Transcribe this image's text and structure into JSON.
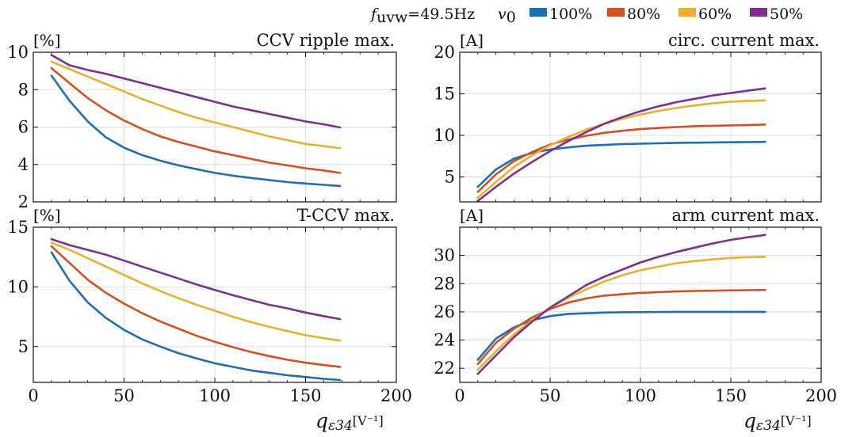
{
  "legend": {
    "freq_label": "f",
    "freq_sub": "uvw",
    "freq_value": "=49.5Hz",
    "v0_label": "v",
    "v0_sub": "0"
  },
  "xaxis": {
    "label": "q",
    "label_sub": "ε34",
    "unit": "[V⁻¹]"
  },
  "chart_data": [
    {
      "type": "line",
      "title": "CCV ripple max.",
      "unit": "[%]",
      "xlim": [
        0,
        200
      ],
      "ylim": [
        2,
        10
      ],
      "yticks": [
        2,
        4,
        6,
        8,
        10
      ],
      "xticks": [
        0,
        50,
        100,
        150,
        200
      ],
      "show_xtick_labels": false,
      "grid": true,
      "x": [
        10,
        20,
        30,
        40,
        50,
        60,
        70,
        80,
        90,
        100,
        110,
        120,
        130,
        140,
        150,
        160,
        169
      ],
      "series": [
        {
          "name": "100%",
          "color": "#1f6eb4",
          "values": [
            8.75,
            7.4,
            6.3,
            5.45,
            4.9,
            4.5,
            4.2,
            3.95,
            3.75,
            3.55,
            3.4,
            3.28,
            3.17,
            3.06,
            2.98,
            2.91,
            2.85
          ]
        },
        {
          "name": "80%",
          "color": "#d05220",
          "values": [
            9.15,
            8.35,
            7.55,
            6.9,
            6.35,
            5.9,
            5.5,
            5.2,
            4.95,
            4.7,
            4.5,
            4.3,
            4.1,
            3.95,
            3.8,
            3.68,
            3.55
          ]
        },
        {
          "name": "60%",
          "color": "#e8b030",
          "values": [
            9.5,
            9.1,
            8.7,
            8.3,
            7.9,
            7.5,
            7.15,
            6.8,
            6.5,
            6.25,
            6.0,
            5.75,
            5.5,
            5.3,
            5.1,
            4.98,
            4.87
          ]
        },
        {
          "name": "50%",
          "color": "#7e2f8e",
          "values": [
            9.85,
            9.3,
            9.05,
            8.85,
            8.6,
            8.35,
            8.1,
            7.85,
            7.6,
            7.35,
            7.1,
            6.9,
            6.7,
            6.5,
            6.3,
            6.15,
            5.98
          ]
        }
      ]
    },
    {
      "type": "line",
      "title": "circ. current max.",
      "unit": "[A]",
      "xlim": [
        0,
        200
      ],
      "ylim": [
        2,
        20
      ],
      "yticks": [
        5,
        10,
        15,
        20
      ],
      "xticks": [
        0,
        50,
        100,
        150,
        200
      ],
      "show_xtick_labels": false,
      "grid": true,
      "x": [
        10,
        20,
        30,
        40,
        50,
        60,
        70,
        80,
        90,
        100,
        110,
        120,
        130,
        140,
        150,
        160,
        169
      ],
      "series": [
        {
          "name": "100%",
          "color": "#1f6eb4",
          "values": [
            3.8,
            5.9,
            7.2,
            7.9,
            8.3,
            8.55,
            8.75,
            8.85,
            8.95,
            9.0,
            9.05,
            9.1,
            9.12,
            9.15,
            9.17,
            9.2,
            9.22
          ]
        },
        {
          "name": "80%",
          "color": "#d05220",
          "values": [
            3.2,
            5.3,
            6.9,
            8.0,
            8.9,
            9.5,
            9.95,
            10.3,
            10.55,
            10.75,
            10.9,
            11.0,
            11.1,
            11.15,
            11.2,
            11.25,
            11.3
          ]
        },
        {
          "name": "60%",
          "color": "#e8b030",
          "values": [
            2.5,
            4.4,
            6.2,
            7.6,
            8.8,
            9.8,
            10.7,
            11.4,
            12.0,
            12.5,
            12.95,
            13.3,
            13.6,
            13.85,
            14.05,
            14.15,
            14.2
          ]
        },
        {
          "name": "50%",
          "color": "#7e2f8e",
          "values": [
            2.1,
            3.8,
            5.4,
            6.8,
            8.1,
            9.3,
            10.4,
            11.4,
            12.2,
            12.9,
            13.5,
            14.0,
            14.4,
            14.8,
            15.1,
            15.4,
            15.65
          ]
        }
      ]
    },
    {
      "type": "line",
      "title": "T-CCV max.",
      "unit": "[%]",
      "xlim": [
        0,
        200
      ],
      "ylim": [
        2,
        15
      ],
      "yticks": [
        5,
        10,
        15
      ],
      "xticks": [
        0,
        50,
        100,
        150,
        200
      ],
      "show_xtick_labels": true,
      "grid": true,
      "x": [
        10,
        20,
        30,
        40,
        50,
        60,
        70,
        80,
        90,
        100,
        110,
        120,
        130,
        140,
        150,
        160,
        169
      ],
      "series": [
        {
          "name": "100%",
          "color": "#1f6eb4",
          "values": [
            12.9,
            10.5,
            8.7,
            7.4,
            6.4,
            5.6,
            5.0,
            4.45,
            4.0,
            3.6,
            3.3,
            3.0,
            2.8,
            2.6,
            2.45,
            2.3,
            2.2
          ]
        },
        {
          "name": "80%",
          "color": "#d05220",
          "values": [
            13.4,
            12.0,
            10.6,
            9.5,
            8.6,
            7.8,
            7.1,
            6.5,
            5.9,
            5.4,
            4.95,
            4.55,
            4.2,
            3.9,
            3.65,
            3.45,
            3.3
          ]
        },
        {
          "name": "60%",
          "color": "#e8b030",
          "values": [
            13.7,
            13.1,
            12.4,
            11.7,
            11.0,
            10.3,
            9.65,
            9.05,
            8.5,
            8.0,
            7.5,
            7.05,
            6.65,
            6.3,
            5.95,
            5.7,
            5.5
          ]
        },
        {
          "name": "50%",
          "color": "#7e2f8e",
          "values": [
            14.0,
            13.5,
            13.1,
            12.7,
            12.2,
            11.7,
            11.2,
            10.7,
            10.2,
            9.75,
            9.3,
            8.9,
            8.5,
            8.2,
            7.85,
            7.55,
            7.3
          ]
        }
      ]
    },
    {
      "type": "line",
      "title": "arm current max.",
      "unit": "[A]",
      "xlim": [
        0,
        200
      ],
      "ylim": [
        21,
        32
      ],
      "yticks": [
        22,
        24,
        26,
        28,
        30
      ],
      "xticks": [
        0,
        50,
        100,
        150,
        200
      ],
      "show_xtick_labels": true,
      "grid": true,
      "x": [
        10,
        20,
        30,
        40,
        50,
        60,
        70,
        80,
        90,
        100,
        110,
        120,
        130,
        140,
        150,
        160,
        169
      ],
      "series": [
        {
          "name": "100%",
          "color": "#1f6eb4",
          "values": [
            22.6,
            24.1,
            24.9,
            25.4,
            25.7,
            25.85,
            25.9,
            25.95,
            25.97,
            25.98,
            25.99,
            26.0,
            26.0,
            26.0,
            26.0,
            26.0,
            26.0
          ]
        },
        {
          "name": "80%",
          "color": "#d05220",
          "values": [
            22.3,
            23.8,
            24.8,
            25.6,
            26.2,
            26.65,
            26.95,
            27.15,
            27.25,
            27.35,
            27.4,
            27.45,
            27.48,
            27.5,
            27.52,
            27.54,
            27.55
          ]
        },
        {
          "name": "60%",
          "color": "#e8b030",
          "values": [
            21.9,
            23.2,
            24.4,
            25.4,
            26.3,
            27.0,
            27.6,
            28.15,
            28.6,
            28.95,
            29.2,
            29.45,
            29.6,
            29.72,
            29.82,
            29.88,
            29.9
          ]
        },
        {
          "name": "50%",
          "color": "#7e2f8e",
          "values": [
            21.6,
            22.9,
            24.2,
            25.3,
            26.3,
            27.1,
            27.9,
            28.5,
            29.0,
            29.5,
            29.9,
            30.25,
            30.55,
            30.85,
            31.1,
            31.3,
            31.45
          ]
        }
      ]
    }
  ]
}
